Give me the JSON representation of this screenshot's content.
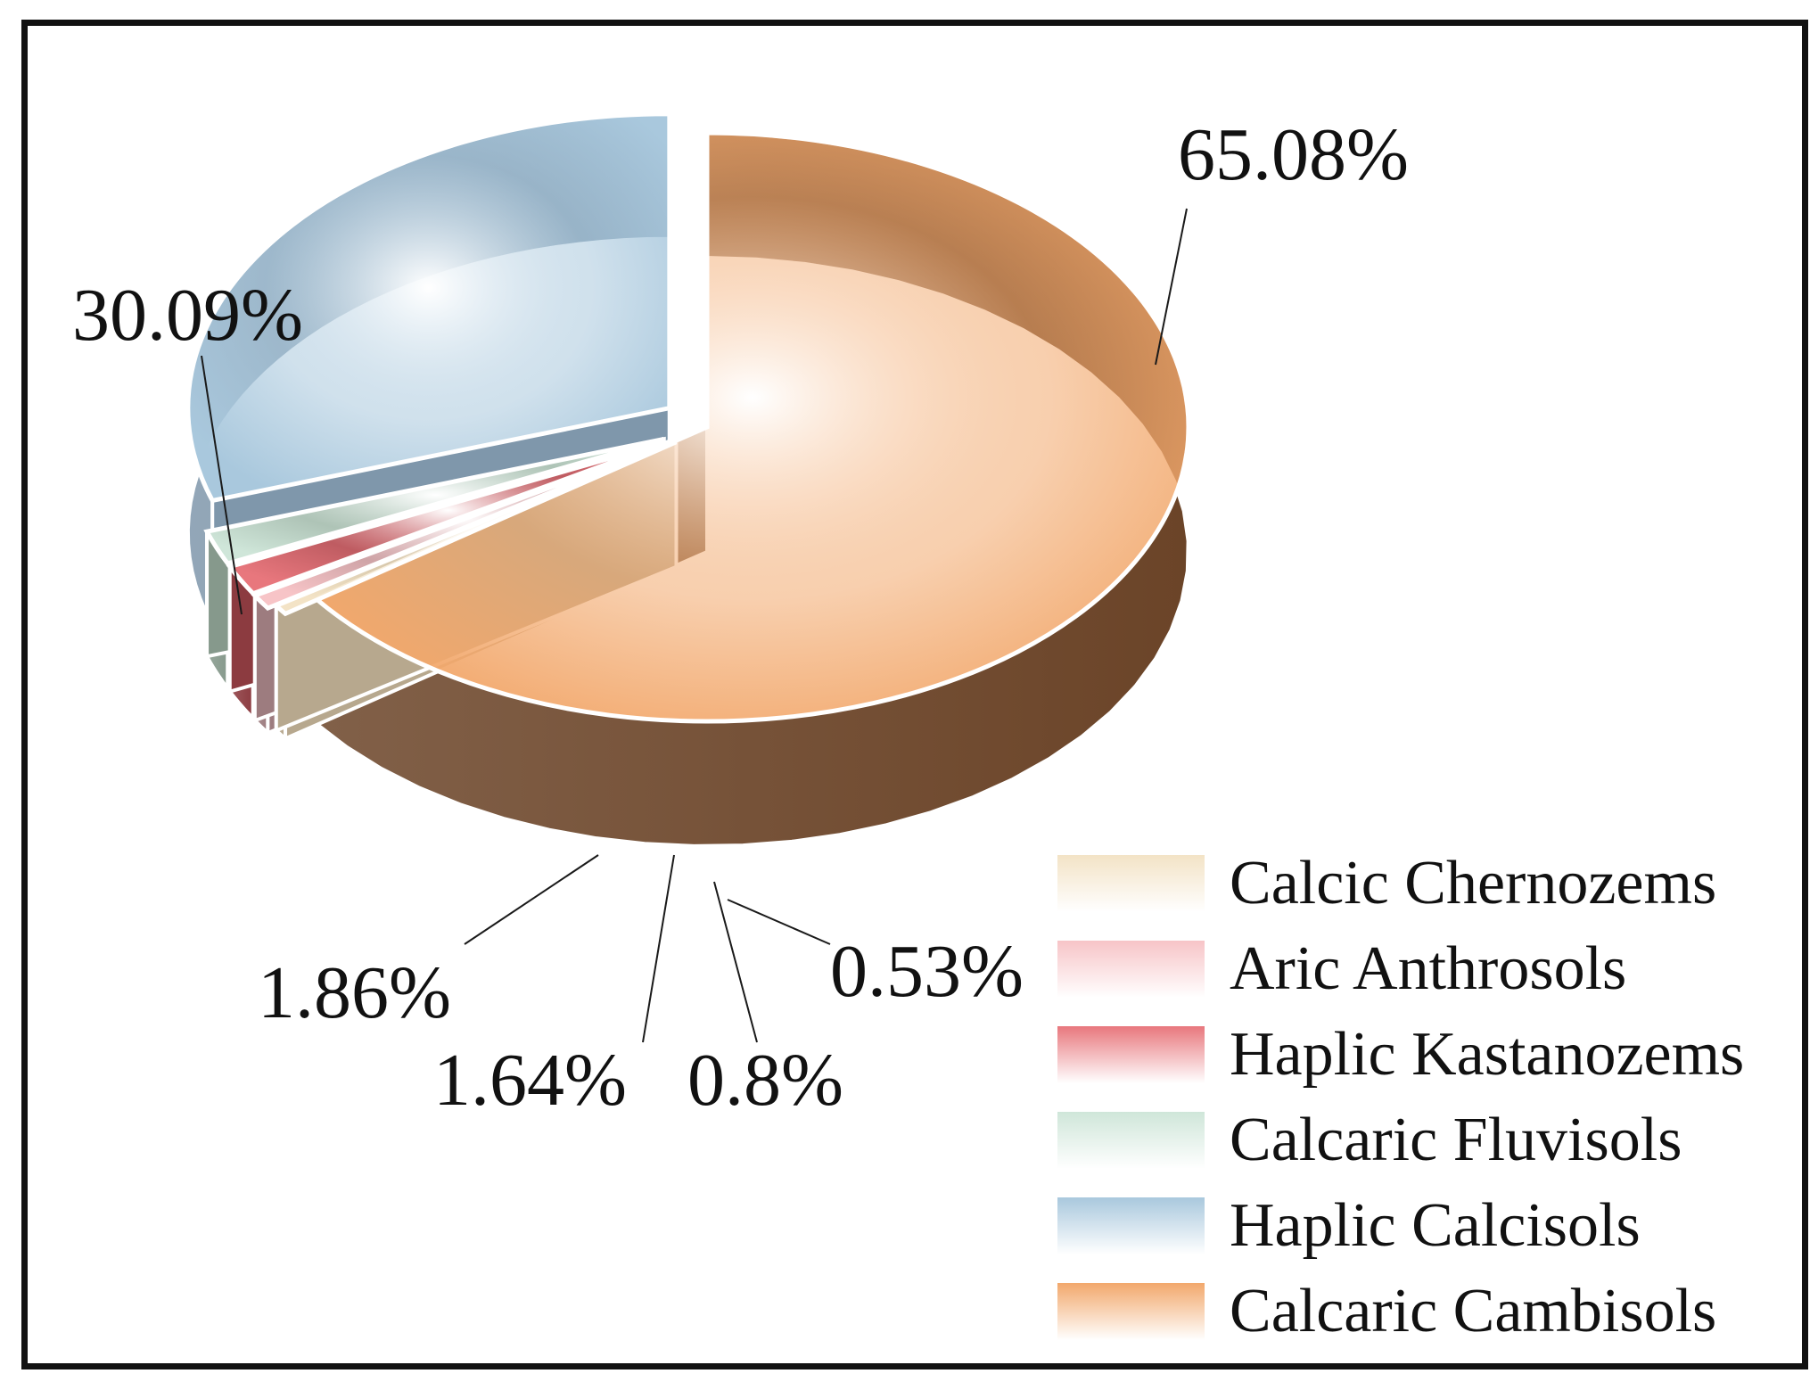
{
  "chart_data": {
    "type": "pie",
    "style": "3d-exploded",
    "title": "",
    "slices": [
      {
        "label": "Calcaric Cambisols",
        "value": 65.08,
        "value_label": "65.08%",
        "color": "#f2a86c",
        "side_color": "#6b4428"
      },
      {
        "label": "Haplic Calcisols",
        "value": 30.09,
        "value_label": "30.09%",
        "color": "#a9c8dd",
        "side_color": "#7f97ab"
      },
      {
        "label": "Calcaric Fluvisols",
        "value": 1.86,
        "value_label": "1.86%",
        "color": "#cfe6d9",
        "side_color": "#86998c"
      },
      {
        "label": "Haplic Kastanozems",
        "value": 1.64,
        "value_label": "1.64%",
        "color": "#e8777d",
        "side_color": "#8c3b40"
      },
      {
        "label": "Aric Anthrosols",
        "value": 0.8,
        "value_label": "0.8%",
        "color": "#f7c4c7",
        "side_color": "#9d7c7f"
      },
      {
        "label": "Calcic Chernozems",
        "value": 0.53,
        "value_label": "0.53%",
        "color": "#f3e3c6",
        "side_color": "#b7a88e"
      }
    ],
    "legend": {
      "placement": "bottom-right",
      "order": [
        "Calcic Chernozems",
        "Aric Anthrosols",
        "Haplic Kastanozems",
        "Calcaric Fluvisols",
        "Haplic Calcisols",
        "Calcaric Cambisols"
      ]
    }
  }
}
